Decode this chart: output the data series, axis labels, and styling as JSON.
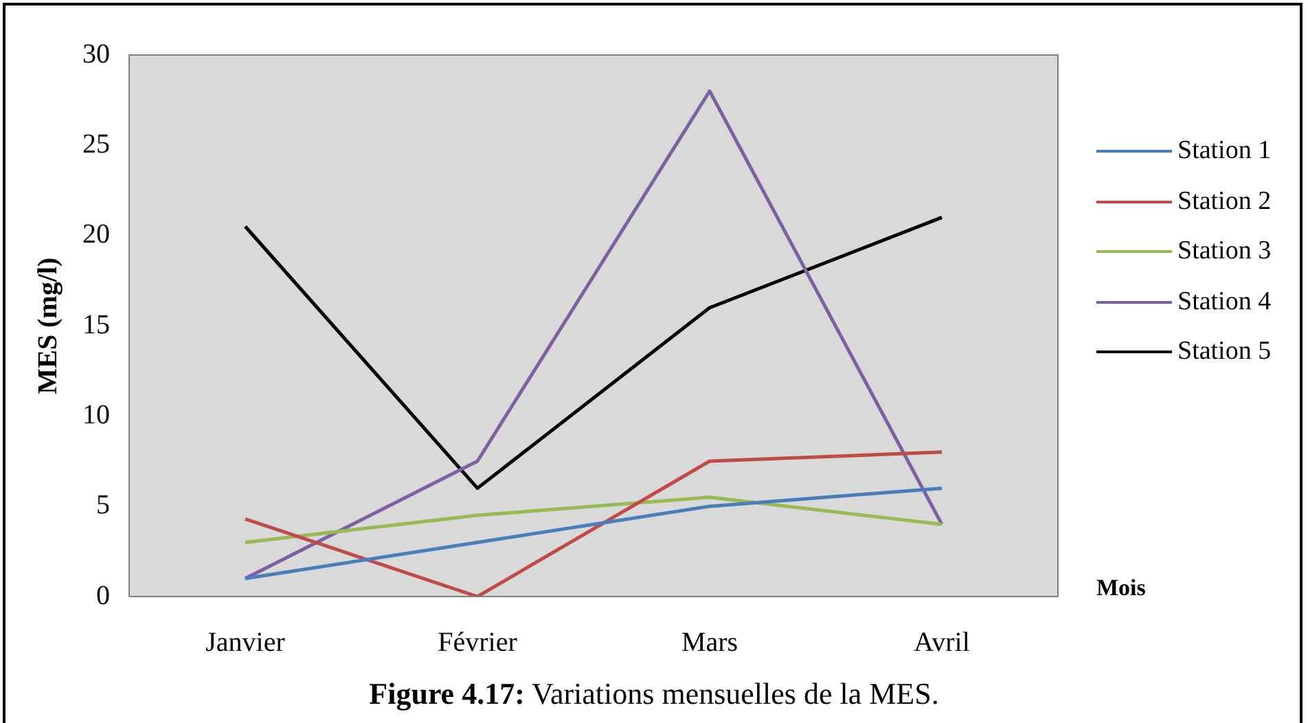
{
  "chart_data": {
    "type": "line",
    "ylabel": "MES (mg/l)",
    "xlabel": "Mois",
    "categories": [
      "Janvier",
      "Février",
      "Mars",
      "Avril"
    ],
    "series": [
      {
        "name": "Station 1",
        "color": "#4a7ebb",
        "values": [
          1,
          3,
          5,
          6
        ]
      },
      {
        "name": "Station 2",
        "color": "#be4b48",
        "values": [
          4.3,
          0,
          7.5,
          8
        ]
      },
      {
        "name": "Station 3",
        "color": "#98b954",
        "values": [
          3,
          4.5,
          5.5,
          4
        ]
      },
      {
        "name": "Station 4",
        "color": "#7d60a0",
        "values": [
          1,
          7.5,
          28,
          4
        ]
      },
      {
        "name": "Station 5",
        "color": "#000000",
        "values": [
          20.5,
          6,
          16,
          21
        ]
      }
    ],
    "ylim": [
      0,
      30
    ],
    "yticks": [
      0,
      5,
      10,
      15,
      20,
      25,
      30
    ],
    "grid": false,
    "legend": "right",
    "marker": "none",
    "line_style": "solid",
    "annotations": [
      "Figure 4.17: Variations mensuelles de la MES."
    ]
  }
}
